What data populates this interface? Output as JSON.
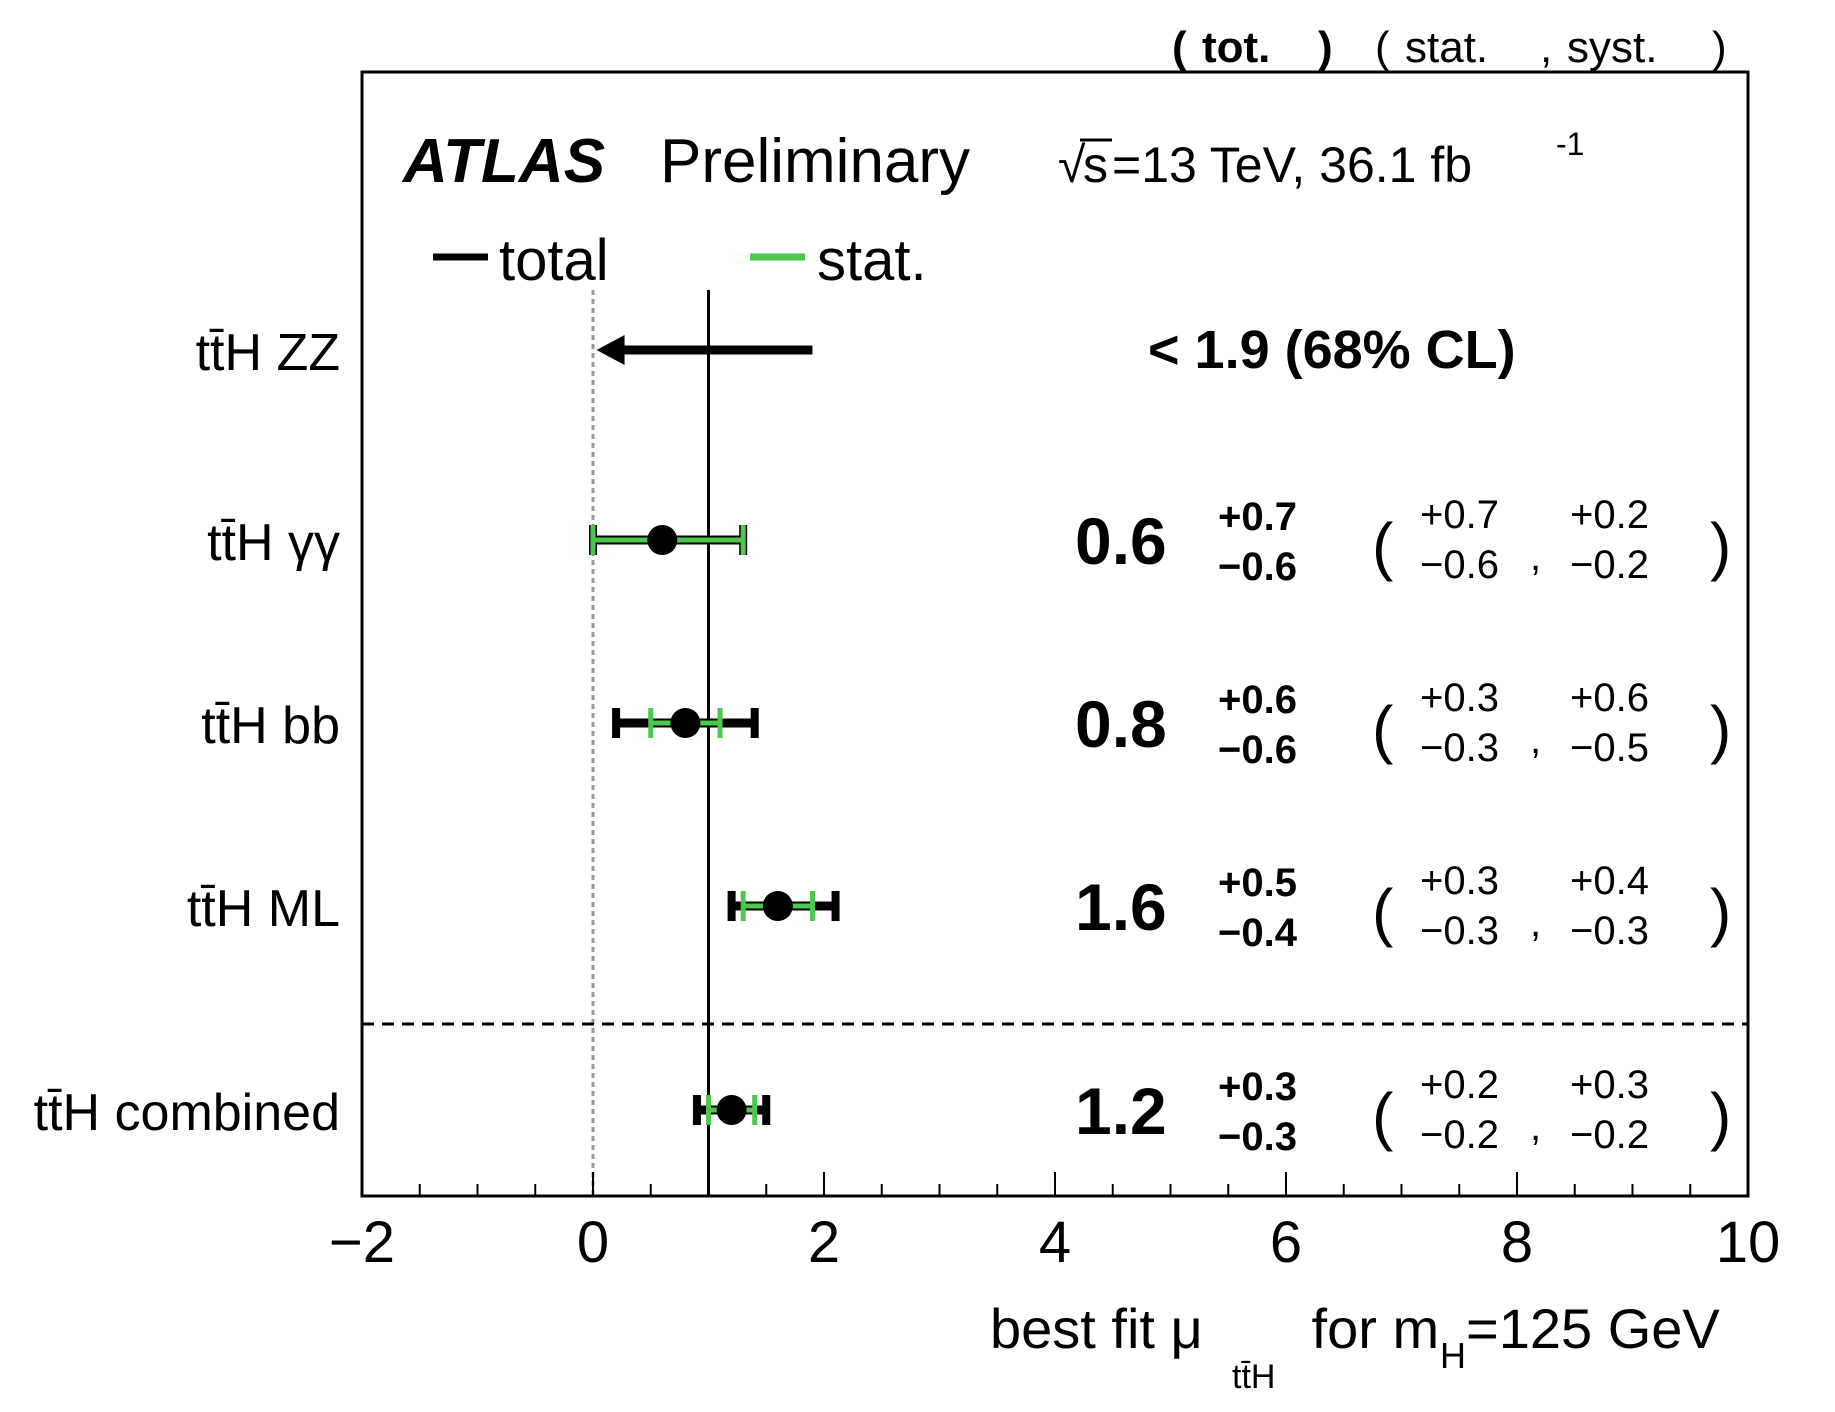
{
  "chart_data": {
    "type": "scatter",
    "experiment": "ATLAS",
    "status": "Preliminary",
    "lumi_sqrt": "√",
    "lumi_s": "s",
    "lumi_text": "=13 TeV, 36.1 fb",
    "lumi_sup": "-1",
    "header": {
      "tot_open": "(",
      "tot_label": "tot.",
      "tot_close": ")",
      "stat_syst_open": "(",
      "stat_label": "stat.",
      "comma": ",",
      "syst_label": "syst.",
      "stat_syst_close": ")"
    },
    "legend": {
      "total": "total",
      "stat": "stat.",
      "placement": "top-left"
    },
    "colors": {
      "total": "#000000",
      "stat": "#4cc94c",
      "zero_line": "#999999"
    },
    "xaxis": {
      "range": [
        -2,
        10
      ],
      "ticks": [
        -2,
        0,
        2,
        4,
        6,
        8,
        10
      ],
      "tick_labels": [
        "−2",
        "0",
        "2",
        "4",
        "6",
        "8",
        "10"
      ],
      "label_pre": "best fit μ",
      "label_sub": "tt̄H",
      "label_mid": " for m",
      "label_sub2": "H",
      "label_post": "=125 GeV"
    },
    "reference_lines": {
      "sm": 1,
      "zero": 0
    },
    "measurements": [
      {
        "name": "tt̄H ZZ",
        "limit": true,
        "upper_limit": 1.9,
        "text": "< 1.9 (68% CL)"
      },
      {
        "name": "tt̄H γγ",
        "limit": false,
        "value": 0.6,
        "value_text": "0.6",
        "tot_up": "+0.7",
        "tot_dn": "−0.6",
        "stat_up": "+0.7",
        "stat_dn": "−0.6",
        "syst_up": "+0.2",
        "syst_dn": "−0.2",
        "tot": [
          0.7,
          0.6
        ],
        "stat": [
          0.7,
          0.6
        ]
      },
      {
        "name": "tt̄H bb",
        "limit": false,
        "value": 0.8,
        "value_text": "0.8",
        "tot_up": "+0.6",
        "tot_dn": "−0.6",
        "stat_up": "+0.3",
        "stat_dn": "−0.3",
        "syst_up": "+0.6",
        "syst_dn": "−0.5",
        "tot": [
          0.6,
          0.6
        ],
        "stat": [
          0.3,
          0.3
        ]
      },
      {
        "name": "tt̄H ML",
        "limit": false,
        "value": 1.6,
        "value_text": "1.6",
        "tot_up": "+0.5",
        "tot_dn": "−0.4",
        "stat_up": "+0.3",
        "stat_dn": "−0.3",
        "syst_up": "+0.4",
        "syst_dn": "−0.3",
        "tot": [
          0.5,
          0.4
        ],
        "stat": [
          0.3,
          0.3
        ]
      },
      {
        "name": "tt̄H combined",
        "limit": false,
        "value": 1.2,
        "value_text": "1.2",
        "tot_up": "+0.3",
        "tot_dn": "−0.3",
        "stat_up": "+0.2",
        "stat_dn": "−0.2",
        "syst_up": "+0.3",
        "syst_dn": "−0.2",
        "tot": [
          0.3,
          0.3
        ],
        "stat": [
          0.2,
          0.2
        ]
      }
    ]
  }
}
